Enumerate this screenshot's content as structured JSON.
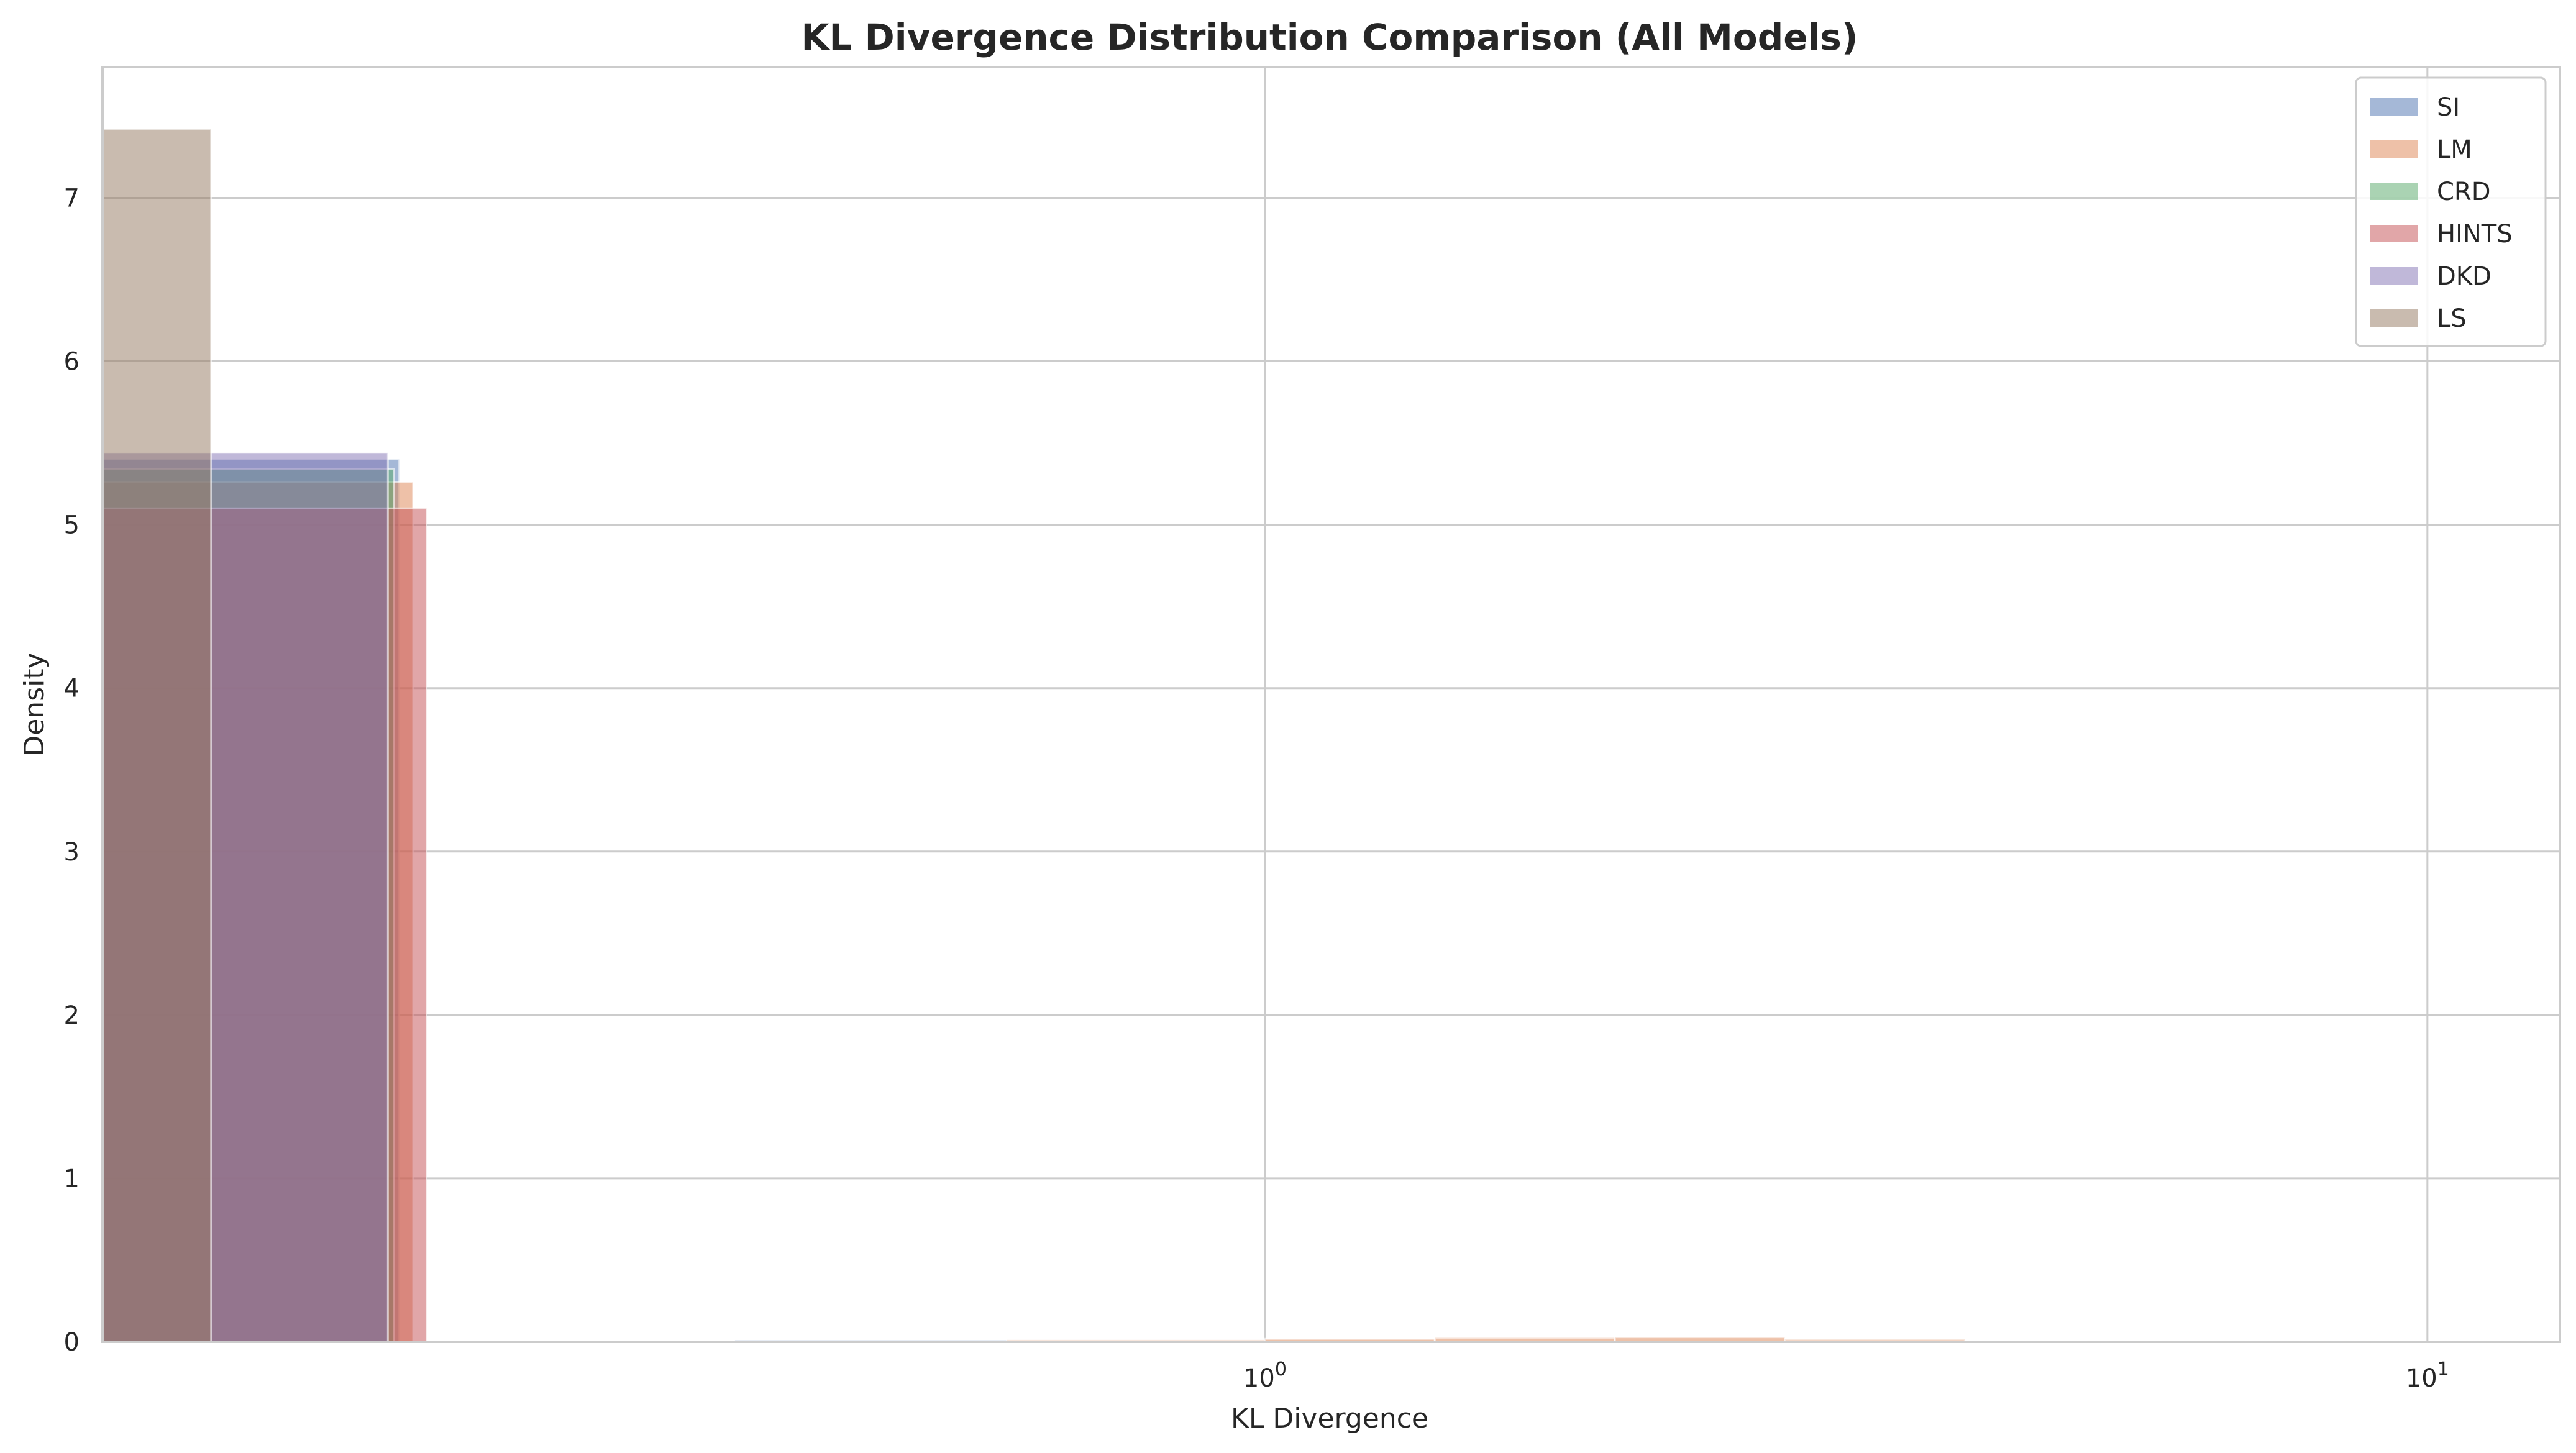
{
  "chart_data": {
    "type": "bar",
    "title": "KL Divergence Distribution Comparison (All Models)",
    "xlabel": "KL Divergence",
    "ylabel": "Density",
    "xscale": "log",
    "xlim": [
      0.1,
      13
    ],
    "ylim": [
      0,
      7.8
    ],
    "yticks": [
      0,
      1,
      2,
      3,
      4,
      5,
      6,
      7
    ],
    "xticks": [
      {
        "value": 1,
        "label": "10",
        "exp": "0"
      },
      {
        "value": 10,
        "label": "10",
        "exp": "1"
      }
    ],
    "grid": true,
    "legend_position": "top-right",
    "series": [
      {
        "name": "SI",
        "color": "#4C72B0",
        "bins": [
          {
            "x0": 0.1,
            "x1": 0.18,
            "y": 5.4
          },
          {
            "x0": 0.35,
            "x1": 0.6,
            "y": 0.01
          }
        ]
      },
      {
        "name": "LM",
        "color": "#DD8452",
        "bins": [
          {
            "x0": 0.1,
            "x1": 0.185,
            "y": 5.26
          },
          {
            "x0": 0.6,
            "x1": 1.0,
            "y": 0.012
          },
          {
            "x0": 1.0,
            "x1": 1.4,
            "y": 0.018
          },
          {
            "x0": 1.4,
            "x1": 2.0,
            "y": 0.025
          },
          {
            "x0": 2.0,
            "x1": 2.8,
            "y": 0.028
          },
          {
            "x0": 2.8,
            "x1": 4.0,
            "y": 0.015
          }
        ]
      },
      {
        "name": "CRD",
        "color": "#55A868",
        "bins": [
          {
            "x0": 0.1,
            "x1": 0.178,
            "y": 5.34
          }
        ]
      },
      {
        "name": "HINTS",
        "color": "#C44E52",
        "bins": [
          {
            "x0": 0.1,
            "x1": 0.19,
            "y": 5.1
          }
        ]
      },
      {
        "name": "DKD",
        "color": "#8172B3",
        "bins": [
          {
            "x0": 0.1,
            "x1": 0.176,
            "y": 5.44
          }
        ]
      },
      {
        "name": "LS",
        "color": "#937860",
        "bins": [
          {
            "x0": 0.1,
            "x1": 0.124,
            "y": 7.42
          }
        ]
      }
    ]
  }
}
